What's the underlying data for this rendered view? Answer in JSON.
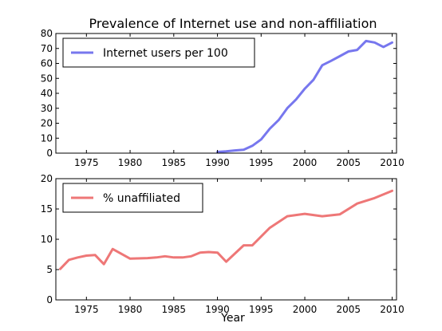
{
  "figure_title": "Prevalence of Internet use and non-affiliation",
  "chart_data": [
    {
      "type": "line",
      "title": "Prevalence of Internet use and non-affiliation",
      "xlabel": "",
      "ylabel": "",
      "xlim": [
        1971.5,
        2010.5
      ],
      "ylim": [
        0,
        80
      ],
      "xticks": [
        "1975",
        "1980",
        "1985",
        "1990",
        "1995",
        "2000",
        "2005",
        "2010"
      ],
      "yticks": [
        "0",
        "10",
        "20",
        "30",
        "40",
        "50",
        "60",
        "70",
        "80"
      ],
      "legend_position": "top-left",
      "grid": false,
      "series": [
        {
          "name": "Internet users per 100",
          "color": "#7777ee",
          "x": [
            1990,
            1991,
            1992,
            1993,
            1994,
            1995,
            1996,
            1997,
            1998,
            1999,
            2000,
            2001,
            2002,
            2003,
            2004,
            2005,
            2006,
            2007,
            2008,
            2009,
            2010
          ],
          "y": [
            0.8,
            1.2,
            1.8,
            2.3,
            4.9,
            9.2,
            16.4,
            22.1,
            30.1,
            35.9,
            43.1,
            49.1,
            58.8,
            61.7,
            64.8,
            68.0,
            69.0,
            75.0,
            74.0,
            71.0,
            74.0
          ]
        }
      ]
    },
    {
      "type": "line",
      "title": "",
      "xlabel": "Year",
      "ylabel": "",
      "xlim": [
        1971.5,
        2010.5
      ],
      "ylim": [
        0,
        20
      ],
      "xticks": [
        "1975",
        "1980",
        "1985",
        "1990",
        "1995",
        "2000",
        "2005",
        "2010"
      ],
      "yticks": [
        "0",
        "5",
        "10",
        "15",
        "20"
      ],
      "legend_position": "top-left",
      "grid": false,
      "series": [
        {
          "name": "% unaffiliated",
          "color": "#ee7777",
          "x": [
            1972,
            1973,
            1974,
            1975,
            1976,
            1977,
            1978,
            1980,
            1982,
            1983,
            1984,
            1985,
            1986,
            1987,
            1988,
            1989,
            1990,
            1991,
            1993,
            1994,
            1996,
            1998,
            2000,
            2002,
            2004,
            2006,
            2008,
            2010
          ],
          "y": [
            5.1,
            6.6,
            7.0,
            7.3,
            7.4,
            5.9,
            8.4,
            6.8,
            6.9,
            7.0,
            7.2,
            7.0,
            7.0,
            7.2,
            7.8,
            7.9,
            7.8,
            6.3,
            9.0,
            9.0,
            11.9,
            13.8,
            14.2,
            13.8,
            14.1,
            15.9,
            16.8,
            18.0
          ]
        }
      ]
    }
  ]
}
